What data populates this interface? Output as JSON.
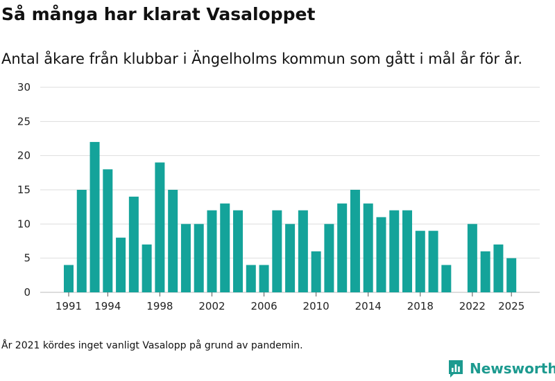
{
  "header": {
    "title": "Så många har klarat Vasaloppet",
    "subtitle": "Antal åkare från klubbar i Ängelholms kommun som gått i mål år för år."
  },
  "footnote": "År 2021 kördes inget vanligt Vasalopp på grund av pandemin.",
  "brand": {
    "name": "Newsworthy",
    "icon": "newsworthy-logo-icon"
  },
  "colors": {
    "bar": "#14a39a",
    "grid": "#dddddd",
    "brand": "#1c9a8f"
  },
  "chart_data": {
    "type": "bar",
    "title": "Så många har klarat Vasaloppet",
    "xlabel": "",
    "ylabel": "",
    "ylim": [
      0,
      30
    ],
    "yticks": [
      0,
      5,
      10,
      15,
      20,
      25,
      30
    ],
    "xticks": [
      "1991",
      "1994",
      "1998",
      "2002",
      "2006",
      "2010",
      "2014",
      "2018",
      "2022",
      "2025"
    ],
    "categories": [
      "1991",
      "1992",
      "1993",
      "1994",
      "1995",
      "1996",
      "1997",
      "1998",
      "1999",
      "2000",
      "2001",
      "2002",
      "2003",
      "2004",
      "2005",
      "2006",
      "2007",
      "2008",
      "2009",
      "2010",
      "2011",
      "2012",
      "2013",
      "2014",
      "2015",
      "2016",
      "2017",
      "2018",
      "2019",
      "2020",
      "2021",
      "2022",
      "2023",
      "2024",
      "2025"
    ],
    "values": [
      4,
      15,
      22,
      18,
      8,
      14,
      7,
      19,
      15,
      10,
      10,
      12,
      13,
      12,
      4,
      4,
      12,
      10,
      12,
      6,
      10,
      13,
      15,
      13,
      11,
      12,
      12,
      9,
      9,
      4,
      null,
      10,
      6,
      7,
      5
    ]
  }
}
